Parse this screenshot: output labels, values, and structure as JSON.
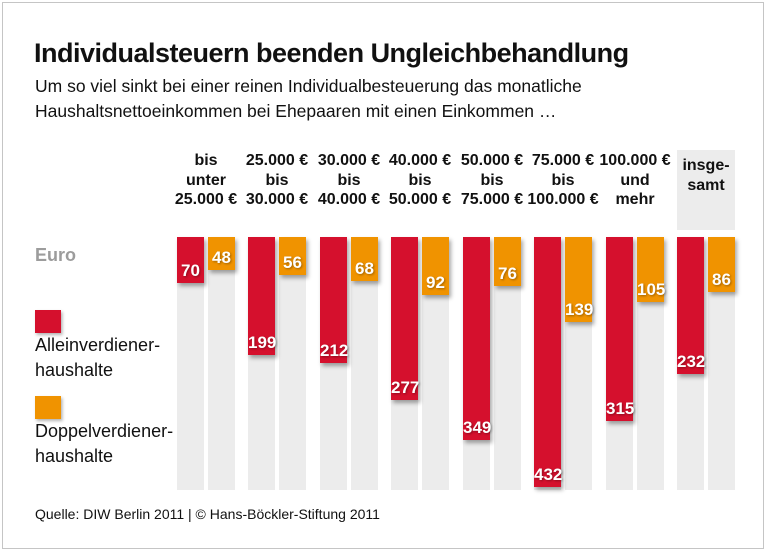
{
  "title": "Individualsteuern beenden Ungleichbehandlung",
  "subtitle": {
    "line1": "Um so viel sinkt bei einer reinen Individualbesteuerung das monatliche",
    "line2": "Haushaltsnettoeinkommen bei Ehepaaren mit einen Einkommen …"
  },
  "axis_unit_label": "Euro",
  "legend": [
    {
      "key": "alleinverdiener",
      "label_line1": "Alleinverdiener-",
      "label_line2": "haushalte",
      "color": "#d5102d"
    },
    {
      "key": "doppelverdiener",
      "label_line1": "Doppelverdiener-",
      "label_line2": "haushalte",
      "color": "#f09300"
    }
  ],
  "source": "Quelle: DIW Berlin 2011 | © Hans-Böckler-Stiftung 2011",
  "colors": {
    "series_red": "#d5102d",
    "series_orange": "#f09300",
    "track_gray": "#ececec",
    "header_box_gray": "#ececec",
    "unit_label_gray": "#9c9c9c",
    "frame_border": "#c5c5c5",
    "value_label_text": "#ffffff"
  },
  "chart_data": {
    "type": "bar",
    "orientation": "vertical-hanging-from-top",
    "value_unit": "Euro (monatlich)",
    "grid": false,
    "legend_position": "left",
    "value_labels": "inside-bar-end",
    "ylim": [
      0,
      440
    ],
    "categories": [
      {
        "lines": [
          "bis",
          "unter",
          "25.000 €"
        ],
        "highlighted": false
      },
      {
        "lines": [
          "25.000 €",
          "bis",
          "30.000 €"
        ],
        "highlighted": false
      },
      {
        "lines": [
          "30.000 €",
          "bis",
          "40.000 €"
        ],
        "highlighted": false
      },
      {
        "lines": [
          "40.000 €",
          "bis",
          "50.000 €"
        ],
        "highlighted": false
      },
      {
        "lines": [
          "50.000 €",
          "bis",
          "75.000 €"
        ],
        "highlighted": false
      },
      {
        "lines": [
          "75.000 €",
          "bis",
          "100.000 €"
        ],
        "highlighted": false
      },
      {
        "lines": [
          "100.000 €",
          "und",
          "mehr"
        ],
        "highlighted": false
      },
      {
        "lines": [
          "insge-",
          "samt"
        ],
        "highlighted": true
      }
    ],
    "series": [
      {
        "name": "Alleinverdienerhaushalte",
        "key": "alleinverdiener",
        "color": "#d5102d",
        "values": [
          70,
          199,
          212,
          277,
          349,
          432,
          315,
          232
        ]
      },
      {
        "name": "Doppelverdienerhaushalte",
        "key": "doppelverdiener",
        "color": "#f09300",
        "values": [
          48,
          56,
          68,
          92,
          76,
          139,
          105,
          86
        ]
      }
    ]
  }
}
